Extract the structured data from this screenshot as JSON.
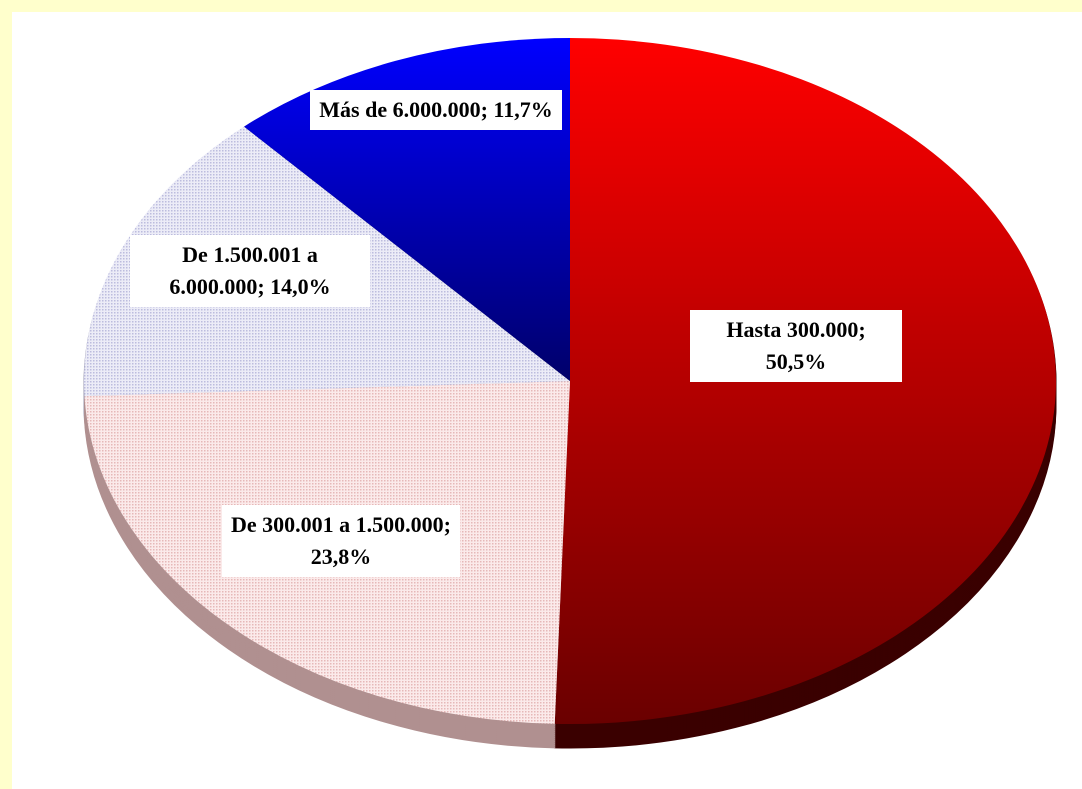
{
  "chart_data": {
    "type": "pie",
    "categories": [
      "Hasta 300.000",
      "De 300.001 a 1.500.000",
      "De 1.500.001 a 6.000.000",
      "Más de 6.000.000"
    ],
    "values": [
      50.5,
      23.8,
      14.0,
      11.7
    ],
    "value_labels": [
      "50,5%",
      "23,8%",
      "14,0%",
      "11,7%"
    ],
    "label_separator": "; ",
    "colors": [
      "#e00000",
      "#f4d4d4",
      "#d8d8ee",
      "#0000e0"
    ]
  }
}
